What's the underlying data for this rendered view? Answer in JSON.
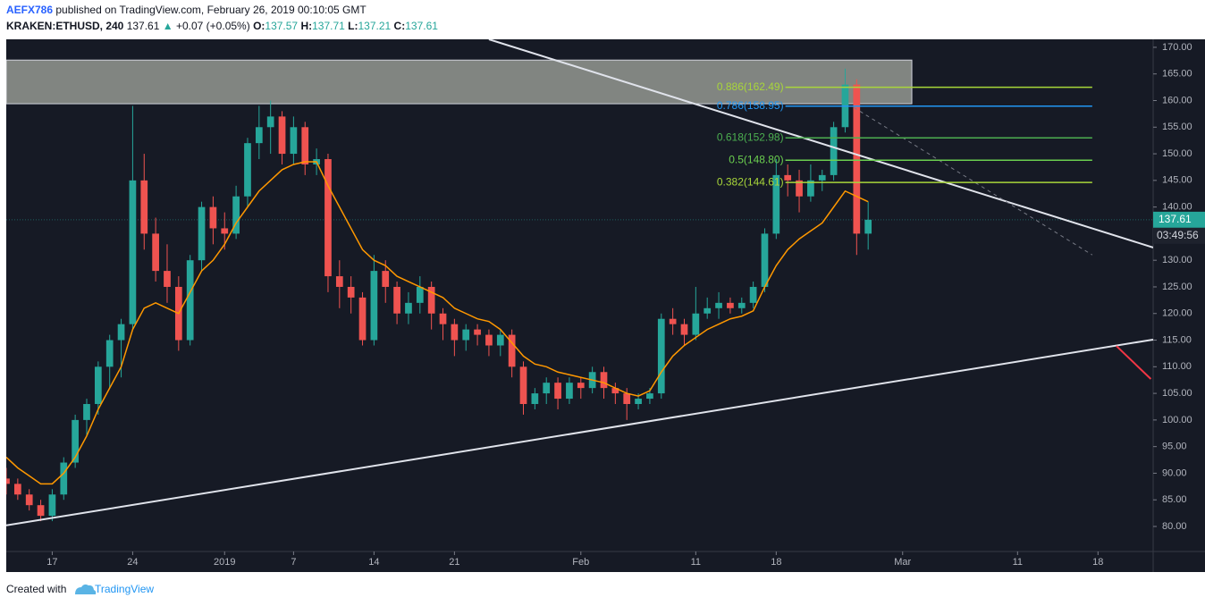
{
  "header": {
    "author": "AEFX786",
    "published": "published on TradingView.com, February 26, 2019 00:10:05 GMT",
    "line2": [
      "KRAKEN:ETHUSD, 240",
      "137.61",
      "▲",
      "+0.07 (+0.05%)",
      "O:",
      "137.57",
      "H:",
      "137.71",
      "L:",
      "137.21",
      "C:",
      "137.61"
    ]
  },
  "footer": {
    "created": "Created with",
    "brand": "TradingView"
  },
  "chart_data": {
    "type": "candlestick",
    "xlim": [
      -4,
      95.8
    ],
    "ylim": [
      75.3,
      171.5
    ],
    "xticks": [
      {
        "value": 0,
        "label": "17"
      },
      {
        "value": 7,
        "label": "24"
      },
      {
        "value": 15,
        "label": "2019"
      },
      {
        "value": 21,
        "label": "7"
      },
      {
        "value": 28,
        "label": "14"
      },
      {
        "value": 35,
        "label": "21"
      },
      {
        "value": 46,
        "label": "Feb"
      },
      {
        "value": 56,
        "label": "11"
      },
      {
        "value": 63,
        "label": "18"
      },
      {
        "value": 74,
        "label": "Mar"
      },
      {
        "value": 84,
        "label": "11"
      },
      {
        "value": 91,
        "label": "18"
      }
    ],
    "yticks": [
      {
        "value": 80,
        "label": "80.00"
      },
      {
        "value": 85,
        "label": "85.00"
      },
      {
        "value": 90,
        "label": "90.00"
      },
      {
        "value": 95,
        "label": "95.00"
      },
      {
        "value": 100,
        "label": "100.00"
      },
      {
        "value": 105,
        "label": "105.00"
      },
      {
        "value": 110,
        "label": "110.00"
      },
      {
        "value": 115,
        "label": "115.00"
      },
      {
        "value": 120,
        "label": "120.00"
      },
      {
        "value": 125,
        "label": "125.00"
      },
      {
        "value": 130,
        "label": "130.00"
      },
      {
        "value": 135,
        "label": "135.00"
      },
      {
        "value": 140,
        "label": "140.00"
      },
      {
        "value": 145,
        "label": "145.00"
      },
      {
        "value": 150,
        "label": "150.00"
      },
      {
        "value": 155,
        "label": "155.00"
      },
      {
        "value": 160,
        "label": "160.00"
      },
      {
        "value": 165,
        "label": "165.00"
      },
      {
        "value": 170,
        "label": "170.00"
      }
    ],
    "grid": false,
    "up_color": "#26a69a",
    "down_color": "#ef5350",
    "x": [
      -4,
      -3,
      -2,
      -1,
      0,
      1,
      2,
      3,
      4,
      5,
      6,
      7,
      8,
      9,
      10,
      11,
      12,
      13,
      14,
      15,
      16,
      17,
      18,
      19,
      20,
      21,
      22,
      23,
      24,
      25,
      26,
      27,
      28,
      29,
      30,
      31,
      32,
      33,
      34,
      35,
      36,
      37,
      38,
      39,
      40,
      41,
      42,
      43,
      44,
      45,
      46,
      47,
      48,
      49,
      50,
      51,
      52,
      53,
      54,
      55,
      56,
      57,
      58,
      59,
      60,
      61,
      62,
      63,
      64,
      65,
      66,
      67,
      68,
      69,
      70,
      71
    ],
    "open": [
      89,
      88,
      86,
      84,
      82,
      86,
      92,
      100,
      103,
      110,
      115,
      118,
      145,
      135,
      128,
      125,
      115,
      130,
      140,
      136,
      135,
      142,
      152,
      155,
      157,
      150,
      155,
      148,
      149,
      127,
      125,
      123,
      115,
      128,
      125,
      120,
      122,
      125,
      120,
      118,
      115,
      117,
      116,
      114,
      116,
      110,
      103,
      105,
      107,
      104,
      107,
      106,
      109,
      106,
      105,
      103,
      104,
      105,
      119,
      118,
      116,
      120,
      121,
      122,
      121,
      122,
      125,
      135,
      146,
      145,
      142,
      145,
      146,
      155,
      163,
      135
    ],
    "high": [
      91,
      89,
      87,
      85,
      87,
      93,
      101,
      104,
      111,
      116,
      119,
      159,
      150,
      138,
      133,
      127,
      131,
      141,
      142,
      139,
      144,
      153,
      159,
      160,
      158,
      157,
      156,
      151,
      150,
      130,
      127,
      124,
      131,
      130,
      126,
      124,
      127,
      126,
      121,
      119,
      118,
      118,
      117,
      117,
      117,
      111,
      106,
      108,
      108,
      108,
      108,
      110,
      110,
      107,
      106,
      105,
      106,
      120,
      121,
      119,
      125,
      123,
      124,
      123,
      123,
      126,
      136,
      149,
      148,
      147,
      148,
      147,
      156,
      166,
      164,
      141
    ],
    "low": [
      86,
      85,
      83,
      81,
      81,
      85,
      91,
      97,
      101,
      106,
      108,
      117,
      132,
      126,
      122,
      113,
      114,
      128,
      133,
      132,
      134,
      140,
      149,
      150,
      148,
      148,
      146,
      146,
      124,
      121,
      120,
      114,
      114,
      122,
      118,
      118,
      120,
      117,
      115,
      112,
      113,
      114,
      112,
      112,
      108,
      101,
      102,
      103,
      102,
      103,
      104,
      105,
      104,
      103,
      100,
      102,
      103,
      104,
      116,
      114,
      115,
      119,
      119,
      120,
      120,
      121,
      124,
      134,
      142,
      139,
      141,
      143,
      145,
      154,
      131,
      132
    ],
    "close": [
      88,
      86,
      84,
      82,
      86,
      92,
      100,
      103,
      110,
      115,
      118,
      145,
      135,
      128,
      125,
      115,
      130,
      140,
      136,
      135,
      142,
      152,
      155,
      157,
      150,
      155,
      148,
      149,
      127,
      125,
      123,
      115,
      128,
      125,
      120,
      122,
      125,
      120,
      118,
      115,
      117,
      116,
      114,
      116,
      110,
      103,
      105,
      107,
      104,
      107,
      106,
      109,
      106,
      105,
      103,
      104,
      105,
      119,
      118,
      116,
      120,
      121,
      122,
      121,
      122,
      125,
      135,
      146,
      145,
      142,
      145,
      146,
      155,
      163,
      135,
      137.61
    ],
    "ma": {
      "color": "#ff9800",
      "values": [
        93,
        91,
        89.5,
        88,
        88,
        90,
        93,
        97,
        102,
        106,
        110,
        117,
        121,
        122,
        121,
        120,
        124,
        128,
        130,
        133,
        137,
        140,
        143,
        145,
        147,
        148,
        148.5,
        148.5,
        144,
        140,
        136,
        132,
        130,
        129,
        127,
        126,
        125,
        124,
        123,
        121,
        120,
        119,
        118.5,
        117,
        114.5,
        112,
        110.5,
        110,
        109,
        108.5,
        108,
        107.5,
        107,
        106,
        105,
        104.5,
        105.5,
        109,
        112,
        114,
        115.5,
        117,
        118,
        119,
        119.5,
        120.5,
        125,
        129,
        132,
        134,
        135.5,
        137,
        140,
        143,
        142,
        141
      ]
    },
    "last_price": 137.61,
    "last_color": "#26a69a",
    "countdown": "03:49:56",
    "zone": {
      "x": [
        -4,
        74.8
      ],
      "y": [
        159.4,
        167.6
      ],
      "color": "#a5a9a0"
    },
    "lines": [
      {
        "x": [
          38.0,
          95.8
        ],
        "y": [
          171.5,
          132.4
        ],
        "color": "#e0e3eb"
      },
      {
        "x": [
          -4,
          95.8
        ],
        "y": [
          80.2,
          115.1
        ],
        "color": "#e0e3eb"
      },
      {
        "x": [
          69.75,
          90.5
        ],
        "y": [
          158.7,
          131.0
        ],
        "color": "#787b86",
        "dashed": true
      },
      {
        "x": [
          92.6,
          95.6
        ],
        "y": [
          113.9,
          107.7
        ],
        "color": "#f23645"
      }
    ],
    "fib": {
      "x": [
        63.8,
        90.5
      ],
      "levels": [
        {
          "label": "0.886(162.49)",
          "value": 162.49,
          "color": "#a8d63a"
        },
        {
          "label": "0.786(158.95)",
          "value": 158.95,
          "color": "#2196f3"
        },
        {
          "label": "0.618(152.98)",
          "value": 152.98,
          "color": "#4caf50"
        },
        {
          "label": "0.5(148.80)",
          "value": 148.8,
          "color": "#6bcf4f"
        },
        {
          "label": "0.382(144.61)",
          "value": 144.61,
          "color": "#a8d63a"
        }
      ]
    }
  }
}
